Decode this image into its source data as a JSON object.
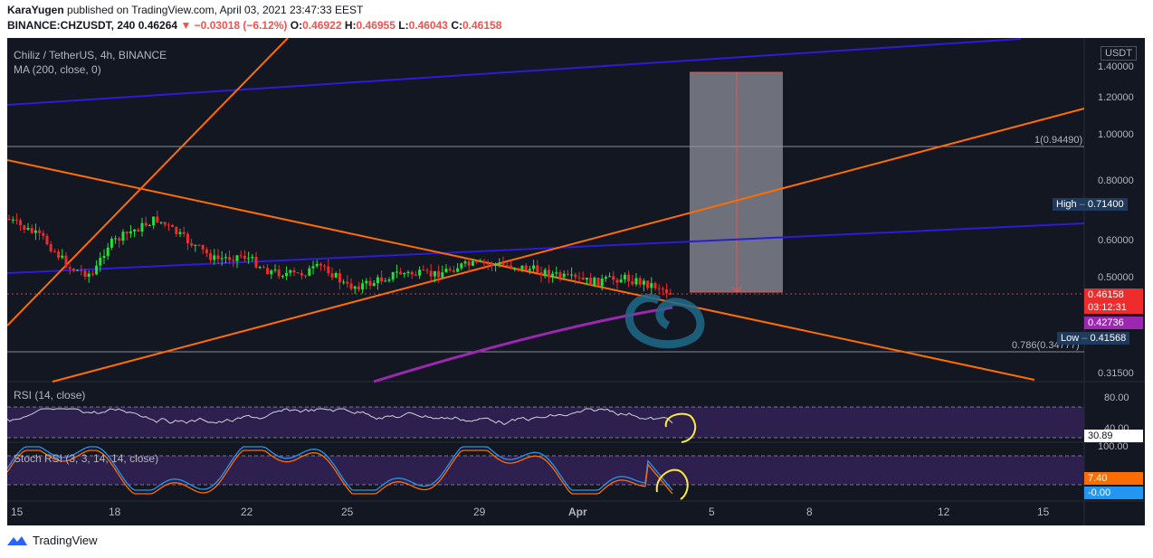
{
  "header": {
    "author": "KaraYugen",
    "published_text": "published on TradingView.com, April 03, 2021 23:47:33 EEST",
    "symbol": "BINANCE:CHZUSDT, 240",
    "last": "0.46264",
    "change": "−0.03018 (−6.12%)",
    "o_label": "O:",
    "o": "0.46922",
    "h_label": "H:",
    "h": "0.46955",
    "l_label": "L:",
    "l": "0.46043",
    "c_label": "C:",
    "c": "0.46158"
  },
  "pane": {
    "title": "Chiliz / TetherUS, 4h, BINANCE",
    "ma_label": "MA (200, close, 0)",
    "currency": "USDT",
    "price_ticks": [
      "1.40000",
      "1.20000",
      "1.00000",
      "0.80000",
      "0.60000",
      "0.50000",
      "0.31500"
    ],
    "fib_1": "1(0.94490)",
    "fib_786": "0.786(0.34777)",
    "high_label": "High",
    "high_value": "0.71400",
    "low_label": "Low",
    "low_value": "0.41568",
    "price_tag": "0.46158",
    "countdown": "03:12:31",
    "ma_tag": "0.42736"
  },
  "rsi": {
    "label": "RSI (14, close)",
    "ticks": [
      "80.00",
      "40.00"
    ],
    "value": "30.89"
  },
  "stoch": {
    "label": "Stoch RSI (3, 3, 14, 14, close)",
    "ticks": [
      "100.00"
    ],
    "k": "7.40",
    "d": "-0.00"
  },
  "x_axis": [
    "15",
    "18",
    "22",
    "25",
    "29",
    "Apr",
    "5",
    "8",
    "12",
    "15"
  ],
  "footer": {
    "brand": "TradingView"
  },
  "colors": {
    "bg": "#131722",
    "orange": "#ff6d00",
    "blue": "#2b1cd6",
    "magenta": "#9c27b0",
    "up": "#26e03a",
    "down": "#ef2b2b"
  }
}
